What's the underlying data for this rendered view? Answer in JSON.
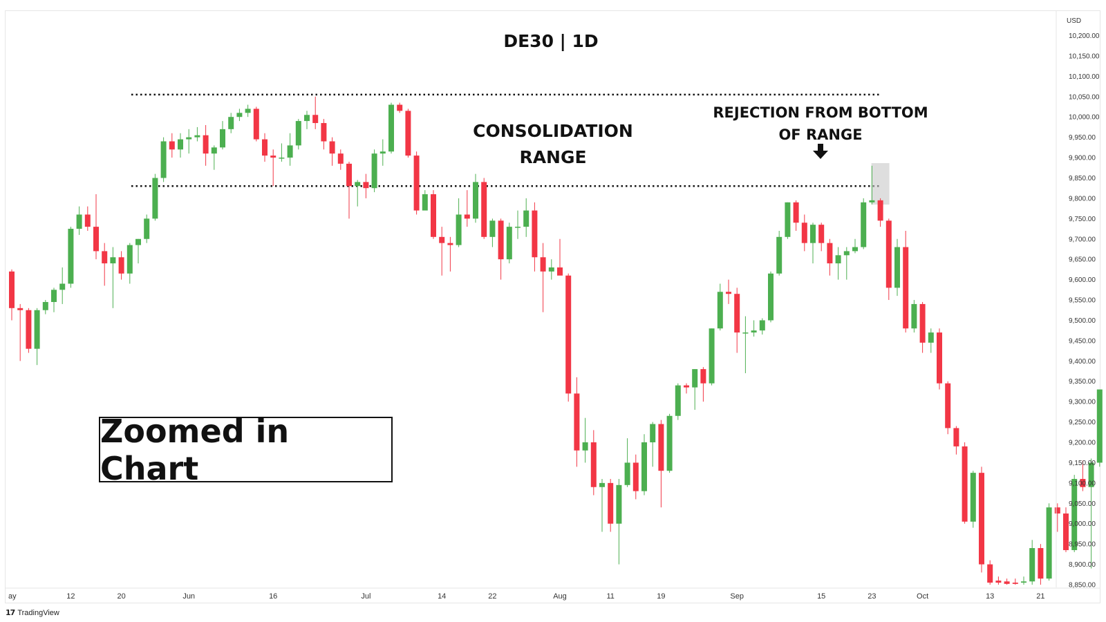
{
  "chart_data": {
    "type": "candlestick",
    "title": "DE30 | 1D",
    "currency": "USD",
    "ylim": [
      8850,
      10225
    ],
    "y_ticks": [
      "10,200.00",
      "10,150.00",
      "10,100.00",
      "10,050.00",
      "10,000.00",
      "9,950.00",
      "9,900.00",
      "9,850.00",
      "9,800.00",
      "9,750.00",
      "9,700.00",
      "9,650.00",
      "9,600.00",
      "9,550.00",
      "9,500.00",
      "9,450.00",
      "9,400.00",
      "9,350.00",
      "9,300.00",
      "9,250.00",
      "9,200.00",
      "9,150.00",
      "9,100.00",
      "9,050.00",
      "9,000.00",
      "8,950.00",
      "8,900.00",
      "8,850.00"
    ],
    "x_ticks": [
      {
        "label": "ay",
        "bar": 0
      },
      {
        "label": "12",
        "bar": 7
      },
      {
        "label": "20",
        "bar": 13
      },
      {
        "label": "Jun",
        "bar": 21
      },
      {
        "label": "16",
        "bar": 31
      },
      {
        "label": "Jul",
        "bar": 42
      },
      {
        "label": "14",
        "bar": 51
      },
      {
        "label": "22",
        "bar": 57
      },
      {
        "label": "Aug",
        "bar": 65
      },
      {
        "label": "11",
        "bar": 71
      },
      {
        "label": "19",
        "bar": 77
      },
      {
        "label": "Sep",
        "bar": 86
      },
      {
        "label": "15",
        "bar": 96
      },
      {
        "label": "23",
        "bar": 102
      },
      {
        "label": "Oct",
        "bar": 108
      },
      {
        "label": "13",
        "bar": 116
      },
      {
        "label": "21",
        "bar": 122
      }
    ],
    "up_color": "#4caf50",
    "down_color": "#f23645",
    "candles": [
      {
        "o": 9620,
        "h": 9625,
        "l": 9500,
        "c": 9530
      },
      {
        "o": 9530,
        "h": 9540,
        "l": 9400,
        "c": 9525
      },
      {
        "o": 9525,
        "h": 9530,
        "l": 9420,
        "c": 9430
      },
      {
        "o": 9430,
        "h": 9530,
        "l": 9390,
        "c": 9525
      },
      {
        "o": 9525,
        "h": 9550,
        "l": 9515,
        "c": 9545
      },
      {
        "o": 9545,
        "h": 9580,
        "l": 9520,
        "c": 9575
      },
      {
        "o": 9575,
        "h": 9630,
        "l": 9540,
        "c": 9590
      },
      {
        "o": 9590,
        "h": 9730,
        "l": 9580,
        "c": 9725
      },
      {
        "o": 9725,
        "h": 9780,
        "l": 9710,
        "c": 9760
      },
      {
        "o": 9760,
        "h": 9780,
        "l": 9720,
        "c": 9730
      },
      {
        "o": 9730,
        "h": 9810,
        "l": 9650,
        "c": 9670
      },
      {
        "o": 9670,
        "h": 9690,
        "l": 9585,
        "c": 9640
      },
      {
        "o": 9640,
        "h": 9680,
        "l": 9530,
        "c": 9655
      },
      {
        "o": 9655,
        "h": 9670,
        "l": 9600,
        "c": 9615
      },
      {
        "o": 9615,
        "h": 9690,
        "l": 9590,
        "c": 9685
      },
      {
        "o": 9685,
        "h": 9700,
        "l": 9640,
        "c": 9700
      },
      {
        "o": 9700,
        "h": 9760,
        "l": 9690,
        "c": 9750
      },
      {
        "o": 9750,
        "h": 9860,
        "l": 9745,
        "c": 9850
      },
      {
        "o": 9850,
        "h": 9950,
        "l": 9840,
        "c": 9940
      },
      {
        "o": 9940,
        "h": 9960,
        "l": 9900,
        "c": 9920
      },
      {
        "o": 9920,
        "h": 9960,
        "l": 9900,
        "c": 9945
      },
      {
        "o": 9945,
        "h": 9970,
        "l": 9910,
        "c": 9950
      },
      {
        "o": 9950,
        "h": 9975,
        "l": 9940,
        "c": 9955
      },
      {
        "o": 9955,
        "h": 9980,
        "l": 9880,
        "c": 9910
      },
      {
        "o": 9910,
        "h": 9930,
        "l": 9870,
        "c": 9925
      },
      {
        "o": 9925,
        "h": 9990,
        "l": 9920,
        "c": 9970
      },
      {
        "o": 9970,
        "h": 10010,
        "l": 9960,
        "c": 10000
      },
      {
        "o": 10000,
        "h": 10020,
        "l": 9990,
        "c": 10010
      },
      {
        "o": 10010,
        "h": 10030,
        "l": 10000,
        "c": 10020
      },
      {
        "o": 10020,
        "h": 10025,
        "l": 9940,
        "c": 9945
      },
      {
        "o": 9945,
        "h": 9960,
        "l": 9890,
        "c": 9905
      },
      {
        "o": 9905,
        "h": 9920,
        "l": 9830,
        "c": 9900
      },
      {
        "o": 9900,
        "h": 9935,
        "l": 9890,
        "c": 9900
      },
      {
        "o": 9900,
        "h": 9960,
        "l": 9880,
        "c": 9930
      },
      {
        "o": 9930,
        "h": 9995,
        "l": 9920,
        "c": 9990
      },
      {
        "o": 9990,
        "h": 10015,
        "l": 9970,
        "c": 10005
      },
      {
        "o": 10005,
        "h": 10050,
        "l": 9970,
        "c": 9985
      },
      {
        "o": 9985,
        "h": 9995,
        "l": 9920,
        "c": 9940
      },
      {
        "o": 9940,
        "h": 9950,
        "l": 9880,
        "c": 9910
      },
      {
        "o": 9910,
        "h": 9920,
        "l": 9870,
        "c": 9885
      },
      {
        "o": 9885,
        "h": 9890,
        "l": 9750,
        "c": 9830
      },
      {
        "o": 9830,
        "h": 9845,
        "l": 9780,
        "c": 9840
      },
      {
        "o": 9840,
        "h": 9860,
        "l": 9800,
        "c": 9825
      },
      {
        "o": 9825,
        "h": 9920,
        "l": 9815,
        "c": 9910
      },
      {
        "o": 9910,
        "h": 9945,
        "l": 9880,
        "c": 9915
      },
      {
        "o": 9915,
        "h": 10035,
        "l": 9910,
        "c": 10030
      },
      {
        "o": 10030,
        "h": 10035,
        "l": 10010,
        "c": 10015
      },
      {
        "o": 10015,
        "h": 10020,
        "l": 9900,
        "c": 9905
      },
      {
        "o": 9905,
        "h": 9915,
        "l": 9760,
        "c": 9770
      },
      {
        "o": 9770,
        "h": 9820,
        "l": 9780,
        "c": 9810
      },
      {
        "o": 9810,
        "h": 9820,
        "l": 9700,
        "c": 9705
      },
      {
        "o": 9705,
        "h": 9730,
        "l": 9610,
        "c": 9690
      },
      {
        "o": 9690,
        "h": 9705,
        "l": 9620,
        "c": 9685
      },
      {
        "o": 9685,
        "h": 9800,
        "l": 9680,
        "c": 9760
      },
      {
        "o": 9760,
        "h": 9820,
        "l": 9730,
        "c": 9750
      },
      {
        "o": 9750,
        "h": 9860,
        "l": 9740,
        "c": 9840
      },
      {
        "o": 9840,
        "h": 9850,
        "l": 9700,
        "c": 9705
      },
      {
        "o": 9705,
        "h": 9750,
        "l": 9680,
        "c": 9745
      },
      {
        "o": 9745,
        "h": 9750,
        "l": 9600,
        "c": 9650
      },
      {
        "o": 9650,
        "h": 9740,
        "l": 9640,
        "c": 9730
      },
      {
        "o": 9730,
        "h": 9770,
        "l": 9700,
        "c": 9730
      },
      {
        "o": 9730,
        "h": 9800,
        "l": 9705,
        "c": 9770
      },
      {
        "o": 9770,
        "h": 9790,
        "l": 9620,
        "c": 9655
      },
      {
        "o": 9655,
        "h": 9690,
        "l": 9520,
        "c": 9620
      },
      {
        "o": 9620,
        "h": 9650,
        "l": 9600,
        "c": 9630
      },
      {
        "o": 9630,
        "h": 9700,
        "l": 9620,
        "c": 9610
      },
      {
        "o": 9610,
        "h": 9615,
        "l": 9300,
        "c": 9320
      },
      {
        "o": 9320,
        "h": 9360,
        "l": 9140,
        "c": 9180
      },
      {
        "o": 9180,
        "h": 9260,
        "l": 9150,
        "c": 9200
      },
      {
        "o": 9200,
        "h": 9230,
        "l": 9070,
        "c": 9090
      },
      {
        "o": 9090,
        "h": 9110,
        "l": 8980,
        "c": 9100
      },
      {
        "o": 9100,
        "h": 9110,
        "l": 8980,
        "c": 9000
      },
      {
        "o": 9000,
        "h": 9110,
        "l": 8900,
        "c": 9095
      },
      {
        "o": 9095,
        "h": 9210,
        "l": 9090,
        "c": 9150
      },
      {
        "o": 9150,
        "h": 9170,
        "l": 9060,
        "c": 9080
      },
      {
        "o": 9080,
        "h": 9220,
        "l": 9070,
        "c": 9200
      },
      {
        "o": 9200,
        "h": 9250,
        "l": 9140,
        "c": 9245
      },
      {
        "o": 9245,
        "h": 9255,
        "l": 9040,
        "c": 9130
      },
      {
        "o": 9130,
        "h": 9270,
        "l": 9125,
        "c": 9265
      },
      {
        "o": 9265,
        "h": 9345,
        "l": 9255,
        "c": 9340
      },
      {
        "o": 9340,
        "h": 9345,
        "l": 9320,
        "c": 9335
      },
      {
        "o": 9335,
        "h": 9380,
        "l": 9280,
        "c": 9380
      },
      {
        "o": 9380,
        "h": 9385,
        "l": 9300,
        "c": 9345
      },
      {
        "o": 9345,
        "h": 9480,
        "l": 9340,
        "c": 9480
      },
      {
        "o": 9480,
        "h": 9590,
        "l": 9475,
        "c": 9570
      },
      {
        "o": 9570,
        "h": 9600,
        "l": 9540,
        "c": 9565
      },
      {
        "o": 9565,
        "h": 9580,
        "l": 9420,
        "c": 9470
      },
      {
        "o": 9470,
        "h": 9510,
        "l": 9370,
        "c": 9470
      },
      {
        "o": 9470,
        "h": 9500,
        "l": 9460,
        "c": 9475
      },
      {
        "o": 9475,
        "h": 9505,
        "l": 9465,
        "c": 9500
      },
      {
        "o": 9500,
        "h": 9620,
        "l": 9495,
        "c": 9615
      },
      {
        "o": 9615,
        "h": 9720,
        "l": 9610,
        "c": 9705
      },
      {
        "o": 9705,
        "h": 9790,
        "l": 9700,
        "c": 9790
      },
      {
        "o": 9790,
        "h": 9795,
        "l": 9720,
        "c": 9740
      },
      {
        "o": 9740,
        "h": 9760,
        "l": 9670,
        "c": 9690
      },
      {
        "o": 9690,
        "h": 9740,
        "l": 9640,
        "c": 9735
      },
      {
        "o": 9735,
        "h": 9740,
        "l": 9670,
        "c": 9690
      },
      {
        "o": 9690,
        "h": 9700,
        "l": 9610,
        "c": 9640
      },
      {
        "o": 9640,
        "h": 9680,
        "l": 9600,
        "c": 9660
      },
      {
        "o": 9660,
        "h": 9680,
        "l": 9600,
        "c": 9670
      },
      {
        "o": 9670,
        "h": 9700,
        "l": 9665,
        "c": 9680
      },
      {
        "o": 9680,
        "h": 9800,
        "l": 9675,
        "c": 9790
      },
      {
        "o": 9790,
        "h": 9880,
        "l": 9785,
        "c": 9795
      },
      {
        "o": 9795,
        "h": 9800,
        "l": 9730,
        "c": 9745
      },
      {
        "o": 9745,
        "h": 9750,
        "l": 9550,
        "c": 9580
      },
      {
        "o": 9580,
        "h": 9700,
        "l": 9560,
        "c": 9680
      },
      {
        "o": 9680,
        "h": 9720,
        "l": 9470,
        "c": 9480
      },
      {
        "o": 9480,
        "h": 9550,
        "l": 9470,
        "c": 9540
      },
      {
        "o": 9540,
        "h": 9545,
        "l": 9420,
        "c": 9445
      },
      {
        "o": 9445,
        "h": 9480,
        "l": 9420,
        "c": 9470
      },
      {
        "o": 9470,
        "h": 9480,
        "l": 9330,
        "c": 9345
      },
      {
        "o": 9345,
        "h": 9350,
        "l": 9220,
        "c": 9235
      },
      {
        "o": 9235,
        "h": 9240,
        "l": 9170,
        "c": 9190
      },
      {
        "o": 9190,
        "h": 9200,
        "l": 9000,
        "c": 9005
      },
      {
        "o": 9005,
        "h": 9130,
        "l": 8990,
        "c": 9125
      },
      {
        "o": 9125,
        "h": 9140,
        "l": 8880,
        "c": 8900
      },
      {
        "o": 8900,
        "h": 8910,
        "l": 8850,
        "c": 8855
      },
      {
        "o": 8860,
        "h": 8870,
        "l": 8850,
        "c": 8855
      },
      {
        "o": 8858,
        "h": 8865,
        "l": 8850,
        "c": 8852
      },
      {
        "o": 8855,
        "h": 8865,
        "l": 8850,
        "c": 8852
      },
      {
        "o": 8855,
        "h": 8870,
        "l": 8850,
        "c": 8858
      },
      {
        "o": 8858,
        "h": 8960,
        "l": 8850,
        "c": 8940
      },
      {
        "o": 8940,
        "h": 8950,
        "l": 8850,
        "c": 8865
      },
      {
        "o": 8865,
        "h": 9050,
        "l": 8860,
        "c": 9040
      },
      {
        "o": 9040,
        "h": 9050,
        "l": 8980,
        "c": 9025
      },
      {
        "o": 9025,
        "h": 9040,
        "l": 8930,
        "c": 8935
      },
      {
        "o": 8935,
        "h": 9120,
        "l": 8930,
        "c": 9110
      },
      {
        "o": 9110,
        "h": 9155,
        "l": 9080,
        "c": 9090
      },
      {
        "o": 9090,
        "h": 9160,
        "l": 8890,
        "c": 9150
      },
      {
        "o": 9150,
        "h": 9330,
        "l": 9140,
        "c": 9330
      }
    ],
    "range_lines": {
      "top": 10055,
      "bottom": 9830
    },
    "highlight_bar": 103,
    "annotations": {
      "consolidation": [
        "CONSOLIDATION",
        "RANGE"
      ],
      "rejection": [
        "REJECTION FROM BOTTOM",
        "OF RANGE"
      ]
    }
  },
  "overlay": {
    "zoom_label": "Zoomed in Chart"
  },
  "branding": {
    "name": "TradingView",
    "mark": "17"
  }
}
